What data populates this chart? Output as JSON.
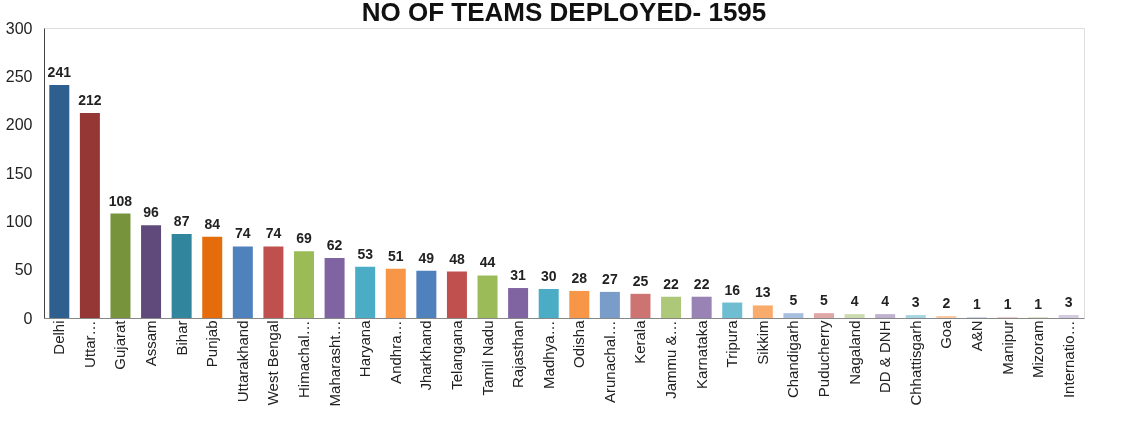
{
  "chart_data": {
    "type": "bar",
    "title": "NO OF TEAMS DEPLOYED- 1595",
    "categories": [
      "Delhi",
      "Uttar…",
      "Gujarat",
      "Assam",
      "Bihar",
      "Punjab",
      "Uttarakhand",
      "West Bengal",
      "Himachal…",
      "Maharasht…",
      "Haryana",
      "Andhra…",
      "Jharkhand",
      "Telangana",
      "Tamil Nadu",
      "Rajasthan",
      "Madhya…",
      "Odisha",
      "Arunachal…",
      "Kerala",
      "Jammu &…",
      "Karnataka",
      "Tripura",
      "Sikkim",
      "Chandigarh",
      "Puducherry",
      "Nagaland",
      "DD & DNH",
      "Chhattisgarh",
      "Goa",
      "A&N",
      "Manipur",
      "Mizoram",
      "Internatio…"
    ],
    "values": [
      241,
      212,
      108,
      96,
      87,
      84,
      74,
      74,
      69,
      62,
      53,
      51,
      49,
      48,
      44,
      31,
      30,
      28,
      27,
      25,
      22,
      22,
      16,
      13,
      5,
      5,
      4,
      4,
      3,
      2,
      1,
      1,
      1,
      3
    ],
    "colors": [
      "#2f5f8f",
      "#953735",
      "#77933c",
      "#604a7b",
      "#31859c",
      "#e46c0a",
      "#4f81bd",
      "#c0504d",
      "#9bbb59",
      "#8064a2",
      "#4bacc6",
      "#f79646",
      "#4f81bd",
      "#c0504d",
      "#9bbb59",
      "#8064a2",
      "#4bacc6",
      "#f79646",
      "#7a9cc8",
      "#cd7371",
      "#aec87a",
      "#9983b5",
      "#6fbdd1",
      "#f9ab6b",
      "#a7bfde",
      "#dfa7a6",
      "#cddbb0",
      "#bfb1d0",
      "#a5d5e2",
      "#fbc8a0",
      "#c9d7ea",
      "#ebcbca",
      "#dde7c9",
      "#d4cbe0"
    ],
    "ylim": [
      0,
      300
    ],
    "yticks": [
      0,
      50,
      100,
      150,
      200,
      250,
      300
    ],
    "grid": false,
    "data_labels": true
  }
}
